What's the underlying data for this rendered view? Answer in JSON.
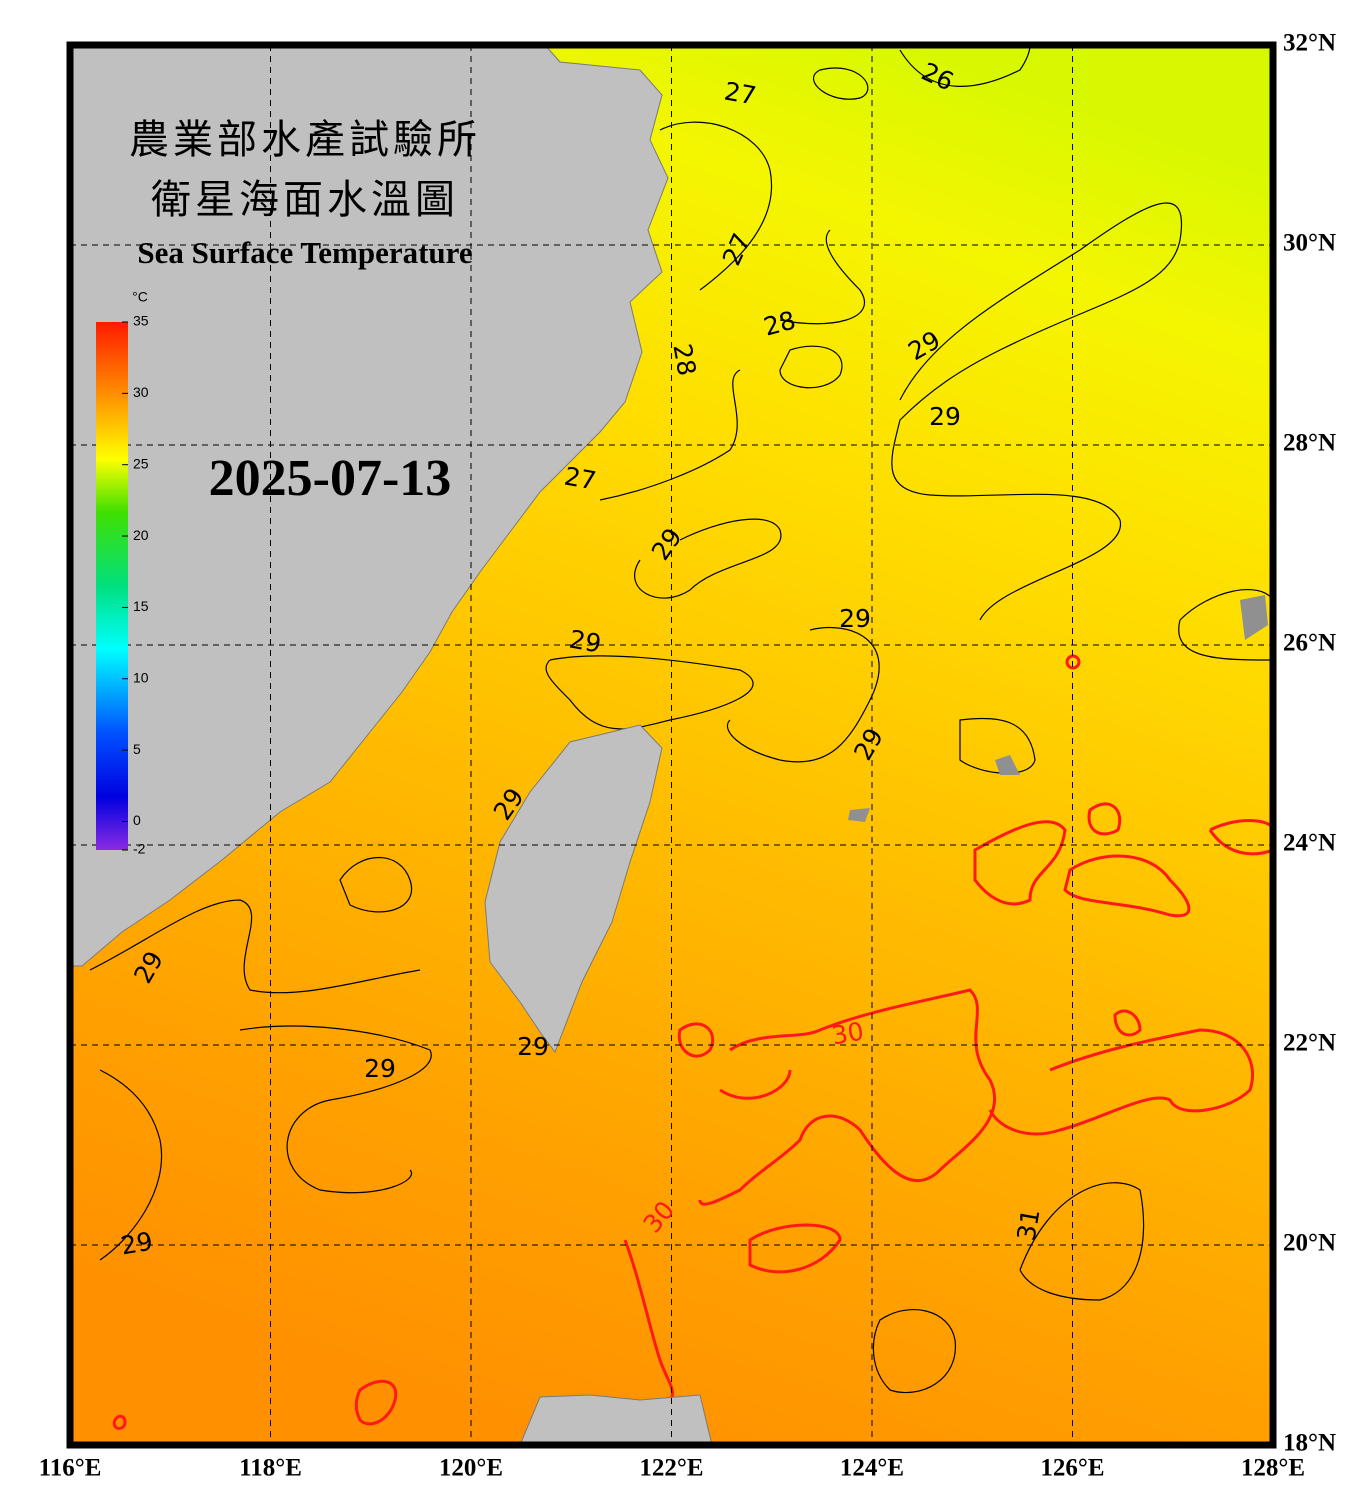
{
  "title_zh": [
    "農業部水產試驗所",
    "衛星海面水溫圖"
  ],
  "title_en": "Sea Surface Temperature",
  "date": "2025-07-13",
  "colorbar": {
    "unit": "°C",
    "lim": [
      -2,
      35
    ],
    "ticks": [
      35,
      30,
      25,
      20,
      15,
      10,
      5,
      0,
      -2
    ]
  },
  "map": {
    "xlim": [
      116,
      128
    ],
    "ylim": [
      18,
      32
    ],
    "xticks": [
      {
        "value": 116,
        "label": "116°E"
      },
      {
        "value": 118,
        "label": "118°E"
      },
      {
        "value": 120,
        "label": "120°E"
      },
      {
        "value": 122,
        "label": "122°E"
      },
      {
        "value": 124,
        "label": "124°E"
      },
      {
        "value": 126,
        "label": "126°E"
      },
      {
        "value": 128,
        "label": "128°E"
      }
    ],
    "yticks": [
      {
        "value": 32,
        "label": "32°N"
      },
      {
        "value": 30,
        "label": "30°N"
      },
      {
        "value": 28,
        "label": "28°N"
      },
      {
        "value": 26,
        "label": "26°N"
      },
      {
        "value": 24,
        "label": "24°N"
      },
      {
        "value": 22,
        "label": "22°N"
      },
      {
        "value": 20,
        "label": "20°N"
      },
      {
        "value": 18,
        "label": "18°N"
      }
    ]
  },
  "contour_labels": [
    26,
    27,
    27,
    28,
    28,
    29,
    29,
    27,
    29,
    29,
    29,
    29,
    29,
    29,
    29,
    29,
    30,
    30,
    31,
    29
  ]
}
